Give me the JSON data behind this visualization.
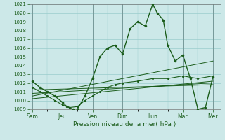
{
  "xlabel": "Pression niveau de la mer( hPa )",
  "background_color": "#cce8e8",
  "grid_color": "#99cccc",
  "line_color": "#1a5c1a",
  "ylim": [
    1009,
    1021
  ],
  "yticks": [
    1009,
    1010,
    1011,
    1012,
    1013,
    1014,
    1015,
    1016,
    1017,
    1018,
    1019,
    1020,
    1021
  ],
  "xtick_labels": [
    "Sam",
    "Jeu",
    "Ven",
    "Dim",
    "Lun",
    "Mar",
    "Mer"
  ],
  "xlim": [
    -0.2,
    12.5
  ],
  "main_line_x": [
    0,
    0.5,
    1.0,
    1.5,
    2.0,
    2.3,
    2.7,
    3.0,
    3.5,
    4.0,
    4.5,
    5.0,
    5.5,
    6.0,
    6.5,
    7.0,
    7.5,
    8.0,
    8.3,
    8.7,
    9.0,
    9.5,
    10.0,
    10.5,
    11.0,
    11.5,
    12.0
  ],
  "main_line_y": [
    1012.2,
    1011.5,
    1011.0,
    1010.5,
    1009.8,
    1009.3,
    1009.0,
    1009.0,
    1010.5,
    1012.5,
    1015.0,
    1016.0,
    1016.3,
    1015.3,
    1018.2,
    1019.0,
    1018.5,
    1021.0,
    1020.0,
    1019.2,
    1016.3,
    1014.5,
    1015.2,
    1012.5,
    1009.0,
    1009.2,
    1012.7
  ],
  "second_line_x": [
    0,
    0.5,
    1.0,
    1.5,
    2.0,
    2.5,
    3.0,
    3.5,
    4.0,
    4.5,
    5.0,
    5.5,
    6.0,
    7.0,
    8.0,
    9.0,
    10.0,
    11.0,
    12.0
  ],
  "second_line_y": [
    1011.5,
    1011.0,
    1010.5,
    1010.0,
    1009.5,
    1009.2,
    1009.3,
    1010.0,
    1010.5,
    1011.0,
    1011.5,
    1011.8,
    1012.0,
    1012.2,
    1012.5,
    1012.5,
    1012.8,
    1012.5,
    1012.8
  ],
  "trend1_x": [
    0,
    12
  ],
  "trend1_y": [
    1010.5,
    1014.5
  ],
  "trend2_x": [
    0,
    12
  ],
  "trend2_y": [
    1010.2,
    1012.2
  ],
  "trend3_x": [
    0,
    12
  ],
  "trend3_y": [
    1010.8,
    1012.0
  ],
  "trend4_x": [
    0,
    12
  ],
  "trend4_y": [
    1011.2,
    1011.8
  ]
}
